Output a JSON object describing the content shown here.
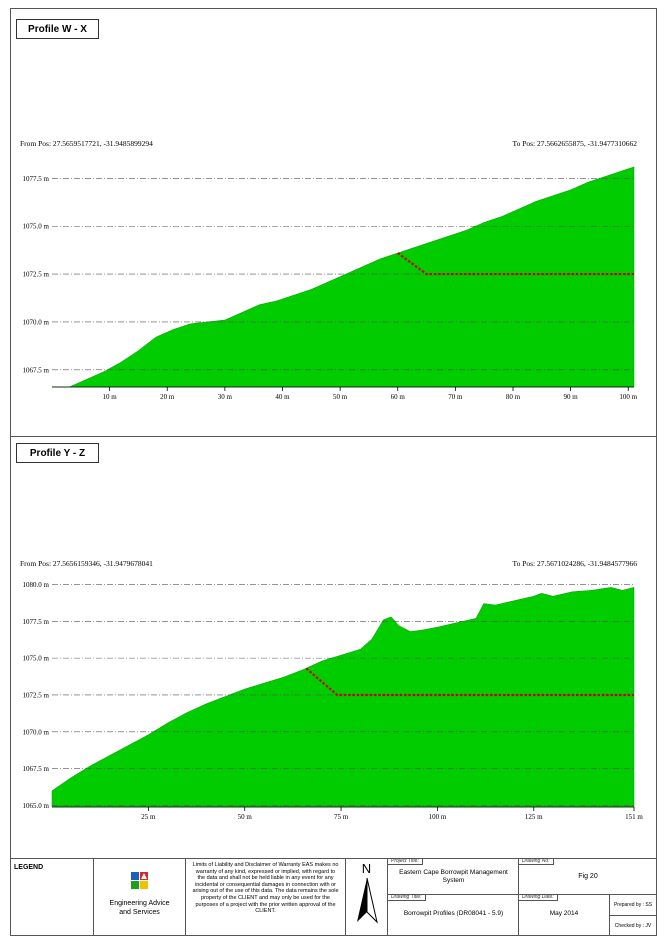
{
  "profiles": [
    {
      "title": "Profile W - X",
      "from_pos": "From Pos: 27.5659517721, -31.9485899294",
      "to_pos": "To Pos: 27.5662655875, -31.9477310662",
      "chart_data": {
        "type": "area",
        "xlabel": "",
        "ylabel": "",
        "xlim": [
          0,
          101
        ],
        "ylim": [
          1066.6,
          1078.2
        ],
        "x_ticks": [
          "10 m",
          "20 m",
          "30 m",
          "40 m",
          "50 m",
          "60 m",
          "70 m",
          "80 m",
          "90 m",
          "100 m"
        ],
        "x_tick_values": [
          10,
          20,
          30,
          40,
          50,
          60,
          70,
          80,
          90,
          100
        ],
        "y_ticks": [
          "1067.5 m",
          "1070.0 m",
          "1072.5 m",
          "1075.0 m",
          "1077.5 m"
        ],
        "y_tick_values": [
          1067.5,
          1070.0,
          1072.5,
          1075.0,
          1077.5
        ],
        "ground": {
          "x": [
            0,
            3,
            6,
            9,
            12,
            15,
            18,
            21,
            24,
            27,
            30,
            33,
            36,
            39,
            42,
            45,
            48,
            51,
            54,
            57,
            60,
            63,
            66,
            69,
            72,
            75,
            78,
            81,
            84,
            87,
            90,
            93,
            96,
            99,
            101
          ],
          "y": [
            1066.2,
            1066.6,
            1067.0,
            1067.4,
            1067.9,
            1068.5,
            1069.2,
            1069.6,
            1069.9,
            1070.0,
            1070.1,
            1070.5,
            1070.9,
            1071.1,
            1071.4,
            1071.7,
            1072.1,
            1072.5,
            1072.9,
            1073.3,
            1073.6,
            1073.9,
            1074.2,
            1074.5,
            1074.8,
            1075.2,
            1075.5,
            1075.9,
            1076.3,
            1076.6,
            1076.9,
            1077.3,
            1077.6,
            1077.9,
            1078.1
          ]
        },
        "excavation": {
          "x": [
            60,
            65,
            101
          ],
          "y": [
            1073.6,
            1072.5,
            1072.5
          ]
        }
      }
    },
    {
      "title": "Profile Y - Z",
      "from_pos": "From Pos: 27.5656159346, -31.9479678041",
      "to_pos": "To Pos: 27.5671024286, -31.9484577966",
      "chart_data": {
        "type": "area",
        "xlabel": "",
        "ylabel": "",
        "xlim": [
          0,
          151
        ],
        "ylim": [
          1064.9,
          1080.3
        ],
        "x_ticks": [
          "25 m",
          "50 m",
          "75 m",
          "100 m",
          "125 m",
          "151 m"
        ],
        "x_tick_values": [
          25,
          50,
          75,
          100,
          125,
          151
        ],
        "y_ticks": [
          "1065.0 m",
          "1067.5 m",
          "1070.0 m",
          "1072.5 m",
          "1075.0 m",
          "1077.5 m",
          "1080.0 m"
        ],
        "y_tick_values": [
          1065.0,
          1067.5,
          1070.0,
          1072.5,
          1075.0,
          1077.5,
          1080.0
        ],
        "ground": {
          "x": [
            0,
            5,
            10,
            15,
            20,
            25,
            30,
            35,
            40,
            45,
            50,
            55,
            60,
            65,
            70,
            75,
            80,
            83,
            86,
            88,
            90,
            93,
            96,
            100,
            105,
            110,
            112,
            115,
            120,
            125,
            127,
            130,
            135,
            140,
            145,
            148,
            151
          ],
          "y": [
            1066.0,
            1066.9,
            1067.7,
            1068.4,
            1069.1,
            1069.8,
            1070.6,
            1071.3,
            1071.9,
            1072.4,
            1072.9,
            1073.3,
            1073.7,
            1074.2,
            1074.8,
            1075.2,
            1075.6,
            1076.3,
            1077.6,
            1077.8,
            1077.2,
            1076.8,
            1076.9,
            1077.1,
            1077.4,
            1077.7,
            1078.7,
            1078.6,
            1078.9,
            1079.2,
            1079.4,
            1079.2,
            1079.5,
            1079.6,
            1079.8,
            1079.6,
            1079.8
          ]
        },
        "excavation": {
          "x": [
            66,
            74,
            151
          ],
          "y": [
            1074.3,
            1072.5,
            1072.5
          ]
        }
      }
    }
  ],
  "legend": {
    "title": "LEGEND",
    "company_line1": "Engineering Advice",
    "company_line2": "and Services",
    "disclaimer": "Limits of Liability and Disclaimer of Warranty EAS makes no warranty of any kind, expressed or implied, with regard to the data and shall not be held liable in any event for any incidental or consequential damages in connection with or arising out of the use of this data. The data remains the sole property of the CLIENT and may only be used for the purposes of a project with the prior written approval of the CLIENT.",
    "north": "N",
    "project_title_label": "Project Title:",
    "project_title": "Eastern Cape Borrowpit Management System",
    "drawing_title_label": "Drawing Title:",
    "drawing_title": "Borrowpit Profiles (DR08041 - 5.9)",
    "drawing_no_label": "Drawing No:",
    "drawing_no": "Fig 20",
    "drawing_date_label": "Drawing Date:",
    "drawing_date": "May 2014",
    "prepared_by": "Prepared by : SS",
    "checked_by": "Checked by : JV"
  },
  "colors": {
    "ground_fill": "#00cc00",
    "excavation_line": "#cc0000",
    "grid": "#555555"
  }
}
